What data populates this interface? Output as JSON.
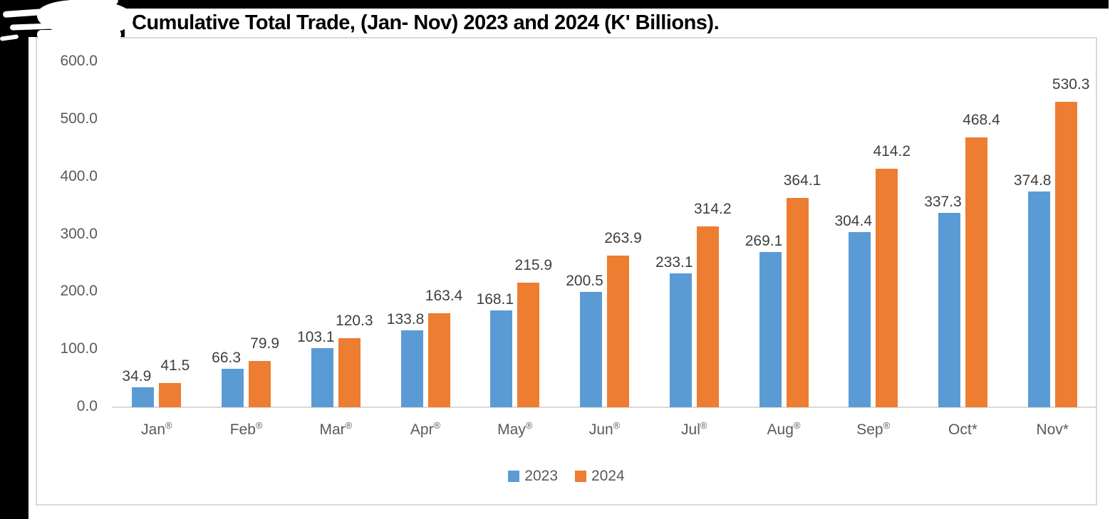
{
  "chart_data": {
    "type": "bar",
    "title": "Cumulative Total Trade, (Jan- Nov) 2023 and 2024 (K' Billions).",
    "categories": [
      "Jan®",
      "Feb®",
      "Mar®",
      "Apr®",
      "May®",
      "Jun®",
      "Jul®",
      "Aug®",
      "Sep®",
      "Oct*",
      "Nov*"
    ],
    "series": [
      {
        "name": "2023",
        "color": "#5B9BD5",
        "values": [
          34.9,
          66.3,
          103.1,
          133.8,
          168.1,
          200.5,
          233.1,
          269.1,
          304.4,
          337.3,
          374.8
        ]
      },
      {
        "name": "2024",
        "color": "#ED7D31",
        "values": [
          41.5,
          79.9,
          120.3,
          163.4,
          215.9,
          263.9,
          314.2,
          364.1,
          414.2,
          468.4,
          530.3
        ]
      }
    ],
    "y_axis": {
      "min": 0,
      "max": 600,
      "ticks": [
        "600.0",
        "500.0",
        "400.0",
        "300.0",
        "200.0",
        "100.0",
        "0.0"
      ]
    },
    "xlabel": "",
    "ylabel": "",
    "ylim": [
      0,
      600
    ],
    "gridlines": false,
    "data_labels": "outside-end, one decimal",
    "legend_position": "bottom",
    "legend": [
      "2023",
      "2024"
    ]
  },
  "decor": {
    "page_edge_color": "#000000",
    "frame_border_color": "#d9d9d9",
    "axis_text_color": "#595959",
    "data_label_color": "#3f3f3f"
  }
}
